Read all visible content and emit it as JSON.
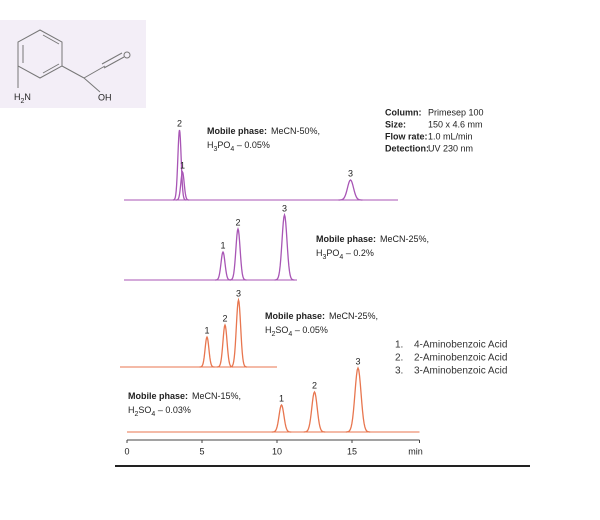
{
  "structure": {
    "amine": "H2N",
    "acid": "OH"
  },
  "info": [
    {
      "label": "Column:",
      "value": "Primesep 100"
    },
    {
      "label": "Size:",
      "value": "150 x 4.6  mm"
    },
    {
      "label": "Flow rate:",
      "value": "1.0  mL/min"
    },
    {
      "label": "Detection:",
      "value": "UV 230 nm"
    }
  ],
  "legend": [
    {
      "number": "1.",
      "name": "4-Aminobenzoic Acid"
    },
    {
      "number": "2.",
      "name": "2-Aminobenzoic Acid"
    },
    {
      "number": "3.",
      "name": "3-Aminobenzoic Acid"
    }
  ],
  "chart_data": {
    "type": "chromatogram",
    "x_label": "min",
    "xlim": [
      0,
      19.5
    ],
    "xticks": [
      0,
      5,
      10,
      15
    ],
    "traces": [
      {
        "label": "Mobile phase:",
        "mobile_phase": [
          "MeCN-50%,",
          "H3PO4 – 0.05%"
        ],
        "color": "#a855b5",
        "peaks": [
          {
            "label": "2",
            "time": 3.7,
            "height": 70
          },
          {
            "label": "1",
            "time": 3.9,
            "height": 28
          },
          {
            "label": "3",
            "time": 15.1,
            "height": 20
          }
        ]
      },
      {
        "label": "Mobile phase:",
        "mobile_phase": [
          "MeCN-25%,",
          "H3PO4 – 0.2%"
        ],
        "color": "#a855b5",
        "peaks": [
          {
            "label": "1",
            "time": 6.6,
            "height": 28
          },
          {
            "label": "2",
            "time": 7.6,
            "height": 51
          },
          {
            "label": "3",
            "time": 10.7,
            "height": 65
          }
        ]
      },
      {
        "label": "Mobile phase:",
        "mobile_phase": [
          "MeCN-25%,",
          "H2SO4 – 0.05%"
        ],
        "color": "#e8764f",
        "peaks": [
          {
            "label": "1",
            "time": 5.8,
            "height": 30
          },
          {
            "label": "2",
            "time": 7.0,
            "height": 42
          },
          {
            "label": "3",
            "time": 7.9,
            "height": 67
          }
        ]
      },
      {
        "label": "Mobile phase:",
        "mobile_phase": [
          "MeCN-15%,",
          "H2SO4 – 0.03%"
        ],
        "color": "#e8764f",
        "peaks": [
          {
            "label": "1",
            "time": 10.3,
            "height": 27
          },
          {
            "label": "2",
            "time": 12.5,
            "height": 40
          },
          {
            "label": "3",
            "time": 15.4,
            "height": 64
          }
        ]
      }
    ]
  }
}
